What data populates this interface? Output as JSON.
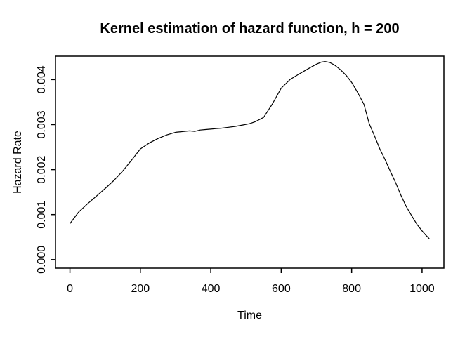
{
  "figure": {
    "title": "Kernel estimation of hazard function, h = 200",
    "xlabel": "Time",
    "ylabel": "Hazard Rate"
  },
  "chart_data": {
    "type": "line",
    "title": "Kernel estimation of hazard function, h = 200",
    "xlabel": "Time",
    "ylabel": "Hazard Rate",
    "x_tick_values": [
      0,
      200,
      400,
      600,
      800,
      1000
    ],
    "x_tick_labels": [
      "0",
      "200",
      "400",
      "600",
      "800",
      "1000"
    ],
    "y_tick_values": [
      0.0,
      0.001,
      0.002,
      0.003,
      0.004
    ],
    "y_tick_labels": [
      "0.000",
      "0.001",
      "0.002",
      "0.003",
      "0.004"
    ],
    "xlim": [
      -41,
      1062
    ],
    "ylim": [
      -0.00019,
      0.00452
    ],
    "grid": false,
    "legend": "none",
    "line_color": "#000000",
    "background": "#ffffff",
    "series": [
      {
        "name": "hazard-estimate",
        "x": [
          0,
          25,
          50,
          75,
          100,
          125,
          150,
          175,
          200,
          225,
          250,
          275,
          300,
          325,
          340,
          355,
          370,
          385,
          400,
          415,
          430,
          450,
          470,
          490,
          510,
          525,
          550,
          575,
          600,
          625,
          650,
          672,
          688,
          702,
          715,
          725,
          738,
          752,
          768,
          785,
          800,
          818,
          835,
          850,
          865,
          880,
          895,
          910,
          925,
          940,
          955,
          970,
          985,
          1000,
          1010,
          1020
        ],
        "y": [
          0.0008,
          0.00106,
          0.00124,
          0.00141,
          0.00158,
          0.00176,
          0.00197,
          0.00221,
          0.00246,
          0.00259,
          0.00269,
          0.00277,
          0.00283,
          0.00285,
          0.00286,
          0.00285,
          0.00288,
          0.00289,
          0.0029,
          0.00291,
          0.00292,
          0.00294,
          0.00296,
          0.00299,
          0.00302,
          0.00306,
          0.00316,
          0.00346,
          0.00381,
          0.004,
          0.00412,
          0.00422,
          0.00429,
          0.00435,
          0.00439,
          0.0044,
          0.00438,
          0.00432,
          0.00422,
          0.00409,
          0.00394,
          0.0037,
          0.00345,
          0.00302,
          0.00275,
          0.00246,
          0.00222,
          0.00196,
          0.00171,
          0.00143,
          0.00118,
          0.00098,
          0.00079,
          0.00064,
          0.00055,
          0.00047
        ]
      }
    ]
  }
}
